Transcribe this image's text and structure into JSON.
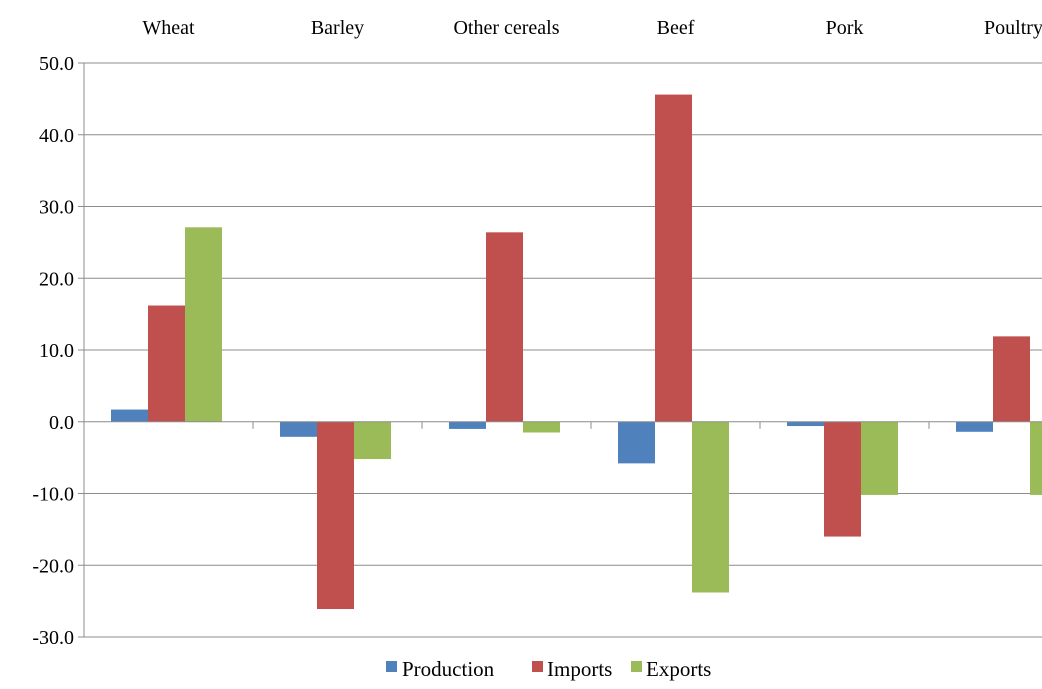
{
  "chart_data": {
    "type": "bar",
    "categories": [
      "Wheat",
      "Barley",
      "Other cereals",
      "Beef",
      "Pork",
      "Poultry"
    ],
    "series": [
      {
        "name": "Production",
        "color": "#4F81BD",
        "values": [
          1.7,
          -2.1,
          -1.0,
          -5.8,
          -0.6,
          -1.4
        ]
      },
      {
        "name": "Imports",
        "color": "#C0504D",
        "values": [
          16.2,
          -26.1,
          26.4,
          45.6,
          -16.0,
          11.9
        ]
      },
      {
        "name": "Exports",
        "color": "#9BBB59",
        "values": [
          27.1,
          -5.2,
          -1.5,
          -23.8,
          -10.2,
          -10.2
        ]
      }
    ],
    "ylim": [
      -30,
      50
    ],
    "yticks": [
      "-30.0",
      "-20.0",
      "-10.0",
      "0.0",
      "10.0",
      "20.0",
      "30.0",
      "40.0",
      "50.0"
    ],
    "ytick_values": [
      -30,
      -20,
      -10,
      0,
      10,
      20,
      30,
      40,
      50
    ],
    "grid": true,
    "category_labels_position": "top",
    "legend_position": "bottom",
    "title": "",
    "xlabel": "",
    "ylabel": ""
  }
}
